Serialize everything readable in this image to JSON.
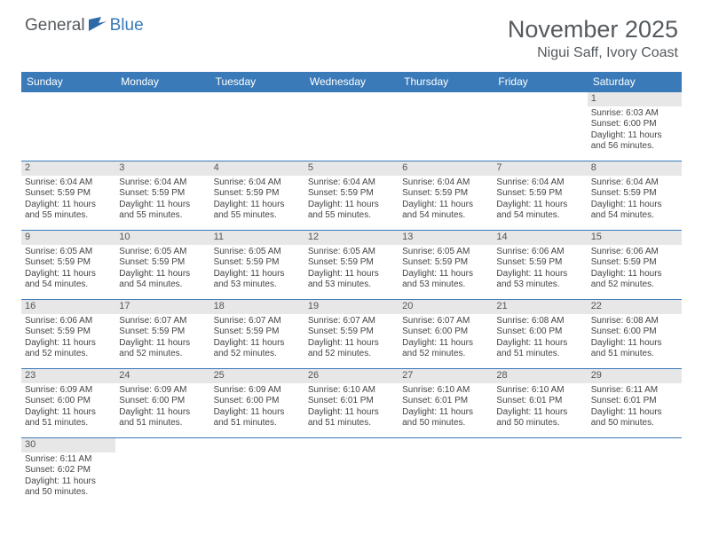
{
  "logo": {
    "part1": "General",
    "part2": "Blue"
  },
  "title": "November 2025",
  "location": "Nigui Saff, Ivory Coast",
  "colors": {
    "header_bg": "#3a7ab8",
    "daynum_bg": "#e7e7e7",
    "text": "#444444",
    "title_text": "#555a5e"
  },
  "daynames": [
    "Sunday",
    "Monday",
    "Tuesday",
    "Wednesday",
    "Thursday",
    "Friday",
    "Saturday"
  ],
  "weeks": [
    [
      null,
      null,
      null,
      null,
      null,
      null,
      {
        "n": "1",
        "sr": "6:03 AM",
        "ss": "6:00 PM",
        "dl": "11 hours and 56 minutes."
      }
    ],
    [
      {
        "n": "2",
        "sr": "6:04 AM",
        "ss": "5:59 PM",
        "dl": "11 hours and 55 minutes."
      },
      {
        "n": "3",
        "sr": "6:04 AM",
        "ss": "5:59 PM",
        "dl": "11 hours and 55 minutes."
      },
      {
        "n": "4",
        "sr": "6:04 AM",
        "ss": "5:59 PM",
        "dl": "11 hours and 55 minutes."
      },
      {
        "n": "5",
        "sr": "6:04 AM",
        "ss": "5:59 PM",
        "dl": "11 hours and 55 minutes."
      },
      {
        "n": "6",
        "sr": "6:04 AM",
        "ss": "5:59 PM",
        "dl": "11 hours and 54 minutes."
      },
      {
        "n": "7",
        "sr": "6:04 AM",
        "ss": "5:59 PM",
        "dl": "11 hours and 54 minutes."
      },
      {
        "n": "8",
        "sr": "6:04 AM",
        "ss": "5:59 PM",
        "dl": "11 hours and 54 minutes."
      }
    ],
    [
      {
        "n": "9",
        "sr": "6:05 AM",
        "ss": "5:59 PM",
        "dl": "11 hours and 54 minutes."
      },
      {
        "n": "10",
        "sr": "6:05 AM",
        "ss": "5:59 PM",
        "dl": "11 hours and 54 minutes."
      },
      {
        "n": "11",
        "sr": "6:05 AM",
        "ss": "5:59 PM",
        "dl": "11 hours and 53 minutes."
      },
      {
        "n": "12",
        "sr": "6:05 AM",
        "ss": "5:59 PM",
        "dl": "11 hours and 53 minutes."
      },
      {
        "n": "13",
        "sr": "6:05 AM",
        "ss": "5:59 PM",
        "dl": "11 hours and 53 minutes."
      },
      {
        "n": "14",
        "sr": "6:06 AM",
        "ss": "5:59 PM",
        "dl": "11 hours and 53 minutes."
      },
      {
        "n": "15",
        "sr": "6:06 AM",
        "ss": "5:59 PM",
        "dl": "11 hours and 52 minutes."
      }
    ],
    [
      {
        "n": "16",
        "sr": "6:06 AM",
        "ss": "5:59 PM",
        "dl": "11 hours and 52 minutes."
      },
      {
        "n": "17",
        "sr": "6:07 AM",
        "ss": "5:59 PM",
        "dl": "11 hours and 52 minutes."
      },
      {
        "n": "18",
        "sr": "6:07 AM",
        "ss": "5:59 PM",
        "dl": "11 hours and 52 minutes."
      },
      {
        "n": "19",
        "sr": "6:07 AM",
        "ss": "5:59 PM",
        "dl": "11 hours and 52 minutes."
      },
      {
        "n": "20",
        "sr": "6:07 AM",
        "ss": "6:00 PM",
        "dl": "11 hours and 52 minutes."
      },
      {
        "n": "21",
        "sr": "6:08 AM",
        "ss": "6:00 PM",
        "dl": "11 hours and 51 minutes."
      },
      {
        "n": "22",
        "sr": "6:08 AM",
        "ss": "6:00 PM",
        "dl": "11 hours and 51 minutes."
      }
    ],
    [
      {
        "n": "23",
        "sr": "6:09 AM",
        "ss": "6:00 PM",
        "dl": "11 hours and 51 minutes."
      },
      {
        "n": "24",
        "sr": "6:09 AM",
        "ss": "6:00 PM",
        "dl": "11 hours and 51 minutes."
      },
      {
        "n": "25",
        "sr": "6:09 AM",
        "ss": "6:00 PM",
        "dl": "11 hours and 51 minutes."
      },
      {
        "n": "26",
        "sr": "6:10 AM",
        "ss": "6:01 PM",
        "dl": "11 hours and 51 minutes."
      },
      {
        "n": "27",
        "sr": "6:10 AM",
        "ss": "6:01 PM",
        "dl": "11 hours and 50 minutes."
      },
      {
        "n": "28",
        "sr": "6:10 AM",
        "ss": "6:01 PM",
        "dl": "11 hours and 50 minutes."
      },
      {
        "n": "29",
        "sr": "6:11 AM",
        "ss": "6:01 PM",
        "dl": "11 hours and 50 minutes."
      }
    ],
    [
      {
        "n": "30",
        "sr": "6:11 AM",
        "ss": "6:02 PM",
        "dl": "11 hours and 50 minutes."
      },
      null,
      null,
      null,
      null,
      null,
      null
    ]
  ],
  "labels": {
    "sunrise": "Sunrise:",
    "sunset": "Sunset:",
    "daylight": "Daylight:"
  }
}
